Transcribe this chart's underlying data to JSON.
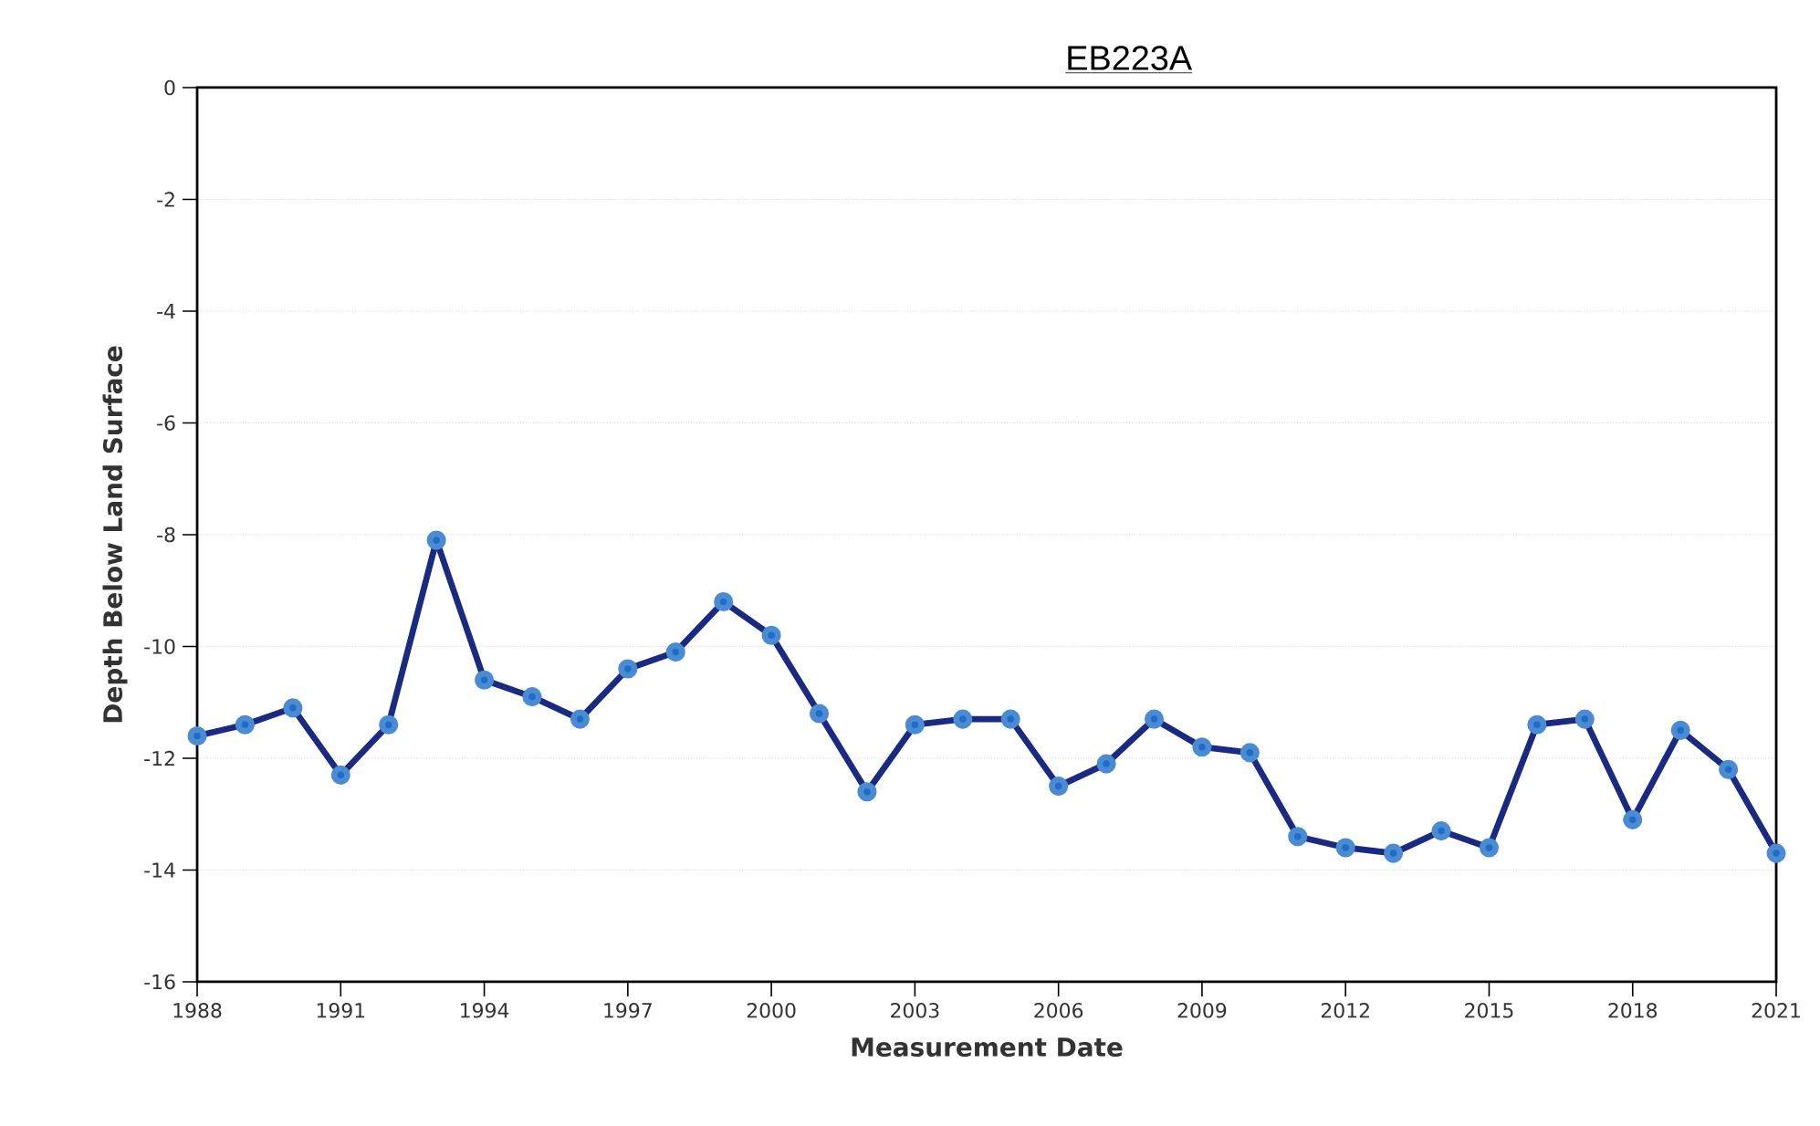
{
  "chart_data": {
    "type": "line",
    "title": "EB223A",
    "xlabel": "Measurement Date",
    "ylabel": "Depth Below Land Surface",
    "x": [
      1988,
      1989,
      1990,
      1991,
      1992,
      1993,
      1994,
      1995,
      1996,
      1997,
      1998,
      1999,
      2000,
      2001,
      2002,
      2003,
      2004,
      2005,
      2006,
      2007,
      2008,
      2009,
      2010,
      2011,
      2012,
      2013,
      2014,
      2015,
      2016,
      2017,
      2018,
      2019,
      2020,
      2021
    ],
    "series": [
      {
        "color": "#1a2a80",
        "values": [
          -11.6,
          -11.4,
          -11.1,
          -12.3,
          -11.4,
          -8.1,
          -10.6,
          -10.9,
          -11.3,
          -10.4,
          -10.1,
          -9.2,
          -9.8,
          -11.2,
          -12.6,
          -11.4,
          -11.3,
          -11.3,
          -12.5,
          -12.1,
          -11.3,
          -11.8,
          -11.9,
          -13.4,
          -13.6,
          -13.7,
          -13.3,
          -13.6,
          -11.4,
          -11.3,
          -13.1,
          -11.5,
          -12.2,
          -13.7
        ]
      }
    ],
    "xlim": [
      1988,
      2021
    ],
    "xticks": [
      1988,
      1991,
      1994,
      1997,
      2000,
      2003,
      2006,
      2009,
      2012,
      2015,
      2018,
      2021
    ],
    "ylim": [
      -16,
      0
    ],
    "yticks": [
      -16,
      -14,
      -12,
      -10,
      -8,
      -6,
      -4,
      -2,
      0
    ],
    "grid": "y",
    "marker": "circle",
    "line_style": "solid"
  }
}
